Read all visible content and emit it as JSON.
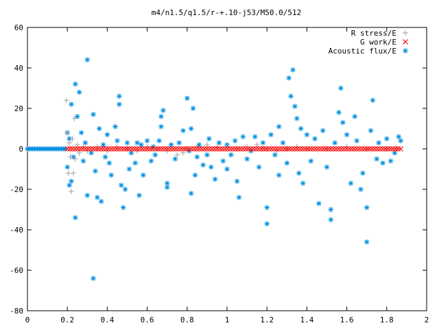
{
  "chart_data": {
    "type": "scatter",
    "title": "m4/n1.5/q1.5/r-+.10-j53/M50.0/512",
    "xlabel": "",
    "ylabel": "",
    "xlim": [
      0,
      2
    ],
    "ylim": [
      -80,
      60
    ],
    "x_ticks": [
      "0",
      "0.2",
      "0.4",
      "0.6",
      "0.8",
      "1",
      "1.2",
      "1.4",
      "1.6",
      "1.8",
      "2"
    ],
    "y_ticks": [
      "60",
      "40",
      "20",
      "0",
      "-20",
      "-40",
      "-60",
      "-80"
    ],
    "grid": false,
    "legend_position": "top-right",
    "series": [
      {
        "name": "R stress/E",
        "marker": "+",
        "color": "#a0a0a0",
        "points": [
          [
            0.195,
            24
          ],
          [
            0.2,
            8
          ],
          [
            0.205,
            -12
          ],
          [
            0.21,
            3
          ],
          [
            0.215,
            -4
          ],
          [
            0.22,
            -21
          ],
          [
            0.225,
            5
          ],
          [
            0.23,
            -12
          ],
          [
            0.235,
            15
          ],
          [
            0.24,
            -5
          ],
          [
            0.25,
            2
          ],
          [
            0.26,
            -2
          ],
          [
            0.28,
            1
          ],
          [
            0.3,
            -1
          ],
          [
            0.35,
            1
          ],
          [
            0.4,
            -1
          ],
          [
            0.45,
            1
          ],
          [
            0.5,
            0
          ],
          [
            0.55,
            -1
          ],
          [
            0.6,
            1
          ],
          [
            0.65,
            0
          ],
          [
            0.7,
            -1
          ],
          [
            0.75,
            -3
          ],
          [
            0.78,
            -2
          ],
          [
            0.8,
            0
          ],
          [
            0.85,
            1
          ],
          [
            0.9,
            2
          ],
          [
            0.95,
            1
          ],
          [
            1.0,
            1
          ],
          [
            1.05,
            0
          ],
          [
            1.1,
            1
          ],
          [
            1.15,
            2
          ],
          [
            1.18,
            1
          ],
          [
            1.2,
            0
          ],
          [
            1.25,
            -1
          ],
          [
            1.3,
            0
          ],
          [
            1.35,
            1
          ],
          [
            1.4,
            0
          ],
          [
            1.5,
            0
          ],
          [
            1.6,
            1
          ],
          [
            1.7,
            0
          ],
          [
            1.8,
            0
          ],
          [
            1.85,
            0
          ]
        ]
      },
      {
        "name": "G work/E",
        "marker": "x",
        "color": "#ff0000",
        "x_range": [
          0.2,
          1.87
        ],
        "n_points": 130,
        "y_values": [
          0
        ]
      },
      {
        "name": "Acoustic flux/E",
        "marker": "*",
        "color": "#0090e0",
        "baseline_x_range": [
          0,
          0.195
        ],
        "baseline_y": 0,
        "points": [
          [
            0.2,
            8
          ],
          [
            0.2,
            -9
          ],
          [
            0.21,
            -18
          ],
          [
            0.21,
            5
          ],
          [
            0.22,
            22
          ],
          [
            0.22,
            -16
          ],
          [
            0.23,
            -4
          ],
          [
            0.24,
            32
          ],
          [
            0.24,
            -34
          ],
          [
            0.25,
            16
          ],
          [
            0.26,
            28
          ],
          [
            0.27,
            8
          ],
          [
            0.28,
            -6
          ],
          [
            0.29,
            3
          ],
          [
            0.3,
            44
          ],
          [
            0.3,
            -23
          ],
          [
            0.32,
            -2
          ],
          [
            0.33,
            17
          ],
          [
            0.33,
            -64
          ],
          [
            0.34,
            -11
          ],
          [
            0.35,
            -24
          ],
          [
            0.36,
            10
          ],
          [
            0.37,
            -26
          ],
          [
            0.38,
            2
          ],
          [
            0.39,
            -4
          ],
          [
            0.4,
            7
          ],
          [
            0.41,
            -7
          ],
          [
            0.42,
            -13
          ],
          [
            0.44,
            11
          ],
          [
            0.45,
            4
          ],
          [
            0.46,
            26
          ],
          [
            0.46,
            22
          ],
          [
            0.47,
            -18
          ],
          [
            0.48,
            -29
          ],
          [
            0.49,
            -20
          ],
          [
            0.5,
            3
          ],
          [
            0.51,
            -10
          ],
          [
            0.52,
            -2
          ],
          [
            0.54,
            -7
          ],
          [
            0.55,
            3
          ],
          [
            0.56,
            -23
          ],
          [
            0.57,
            2
          ],
          [
            0.58,
            -13
          ],
          [
            0.6,
            4
          ],
          [
            0.62,
            -6
          ],
          [
            0.63,
            1
          ],
          [
            0.64,
            -3
          ],
          [
            0.66,
            4
          ],
          [
            0.67,
            16
          ],
          [
            0.67,
            11
          ],
          [
            0.68,
            19
          ],
          [
            0.7,
            -19
          ],
          [
            0.7,
            -17
          ],
          [
            0.72,
            2
          ],
          [
            0.74,
            -5
          ],
          [
            0.76,
            3
          ],
          [
            0.78,
            9
          ],
          [
            0.8,
            25
          ],
          [
            0.81,
            -1
          ],
          [
            0.82,
            10
          ],
          [
            0.82,
            -22
          ],
          [
            0.83,
            20
          ],
          [
            0.84,
            -13
          ],
          [
            0.85,
            -4
          ],
          [
            0.86,
            2
          ],
          [
            0.88,
            -8
          ],
          [
            0.9,
            -3
          ],
          [
            0.91,
            5
          ],
          [
            0.92,
            -9
          ],
          [
            0.94,
            -15
          ],
          [
            0.96,
            3
          ],
          [
            0.98,
            -6
          ],
          [
            1.0,
            2
          ],
          [
            1.0,
            -10
          ],
          [
            1.02,
            -3
          ],
          [
            1.04,
            4
          ],
          [
            1.05,
            -16
          ],
          [
            1.06,
            -24
          ],
          [
            1.08,
            6
          ],
          [
            1.1,
            -5
          ],
          [
            1.12,
            -1
          ],
          [
            1.14,
            6
          ],
          [
            1.16,
            -9
          ],
          [
            1.18,
            3
          ],
          [
            1.2,
            -37
          ],
          [
            1.2,
            -29
          ],
          [
            1.22,
            7
          ],
          [
            1.24,
            -3
          ],
          [
            1.26,
            11
          ],
          [
            1.26,
            -13
          ],
          [
            1.28,
            3
          ],
          [
            1.3,
            -7
          ],
          [
            1.31,
            35
          ],
          [
            1.32,
            26
          ],
          [
            1.33,
            39
          ],
          [
            1.34,
            21
          ],
          [
            1.35,
            15
          ],
          [
            1.36,
            -12
          ],
          [
            1.37,
            10
          ],
          [
            1.38,
            -17
          ],
          [
            1.4,
            7
          ],
          [
            1.42,
            -6
          ],
          [
            1.44,
            5
          ],
          [
            1.46,
            -27
          ],
          [
            1.48,
            9
          ],
          [
            1.5,
            -9
          ],
          [
            1.52,
            -30
          ],
          [
            1.52,
            -35
          ],
          [
            1.54,
            3
          ],
          [
            1.56,
            18
          ],
          [
            1.57,
            30
          ],
          [
            1.58,
            13
          ],
          [
            1.6,
            7
          ],
          [
            1.62,
            -17
          ],
          [
            1.64,
            16
          ],
          [
            1.65,
            4
          ],
          [
            1.67,
            -20
          ],
          [
            1.68,
            -12
          ],
          [
            1.7,
            -29
          ],
          [
            1.7,
            -46
          ],
          [
            1.72,
            9
          ],
          [
            1.73,
            24
          ],
          [
            1.75,
            -5
          ],
          [
            1.76,
            3
          ],
          [
            1.78,
            -7
          ],
          [
            1.8,
            5
          ],
          [
            1.82,
            -6
          ],
          [
            1.84,
            -2
          ],
          [
            1.86,
            6
          ],
          [
            1.87,
            4
          ]
        ]
      }
    ]
  }
}
